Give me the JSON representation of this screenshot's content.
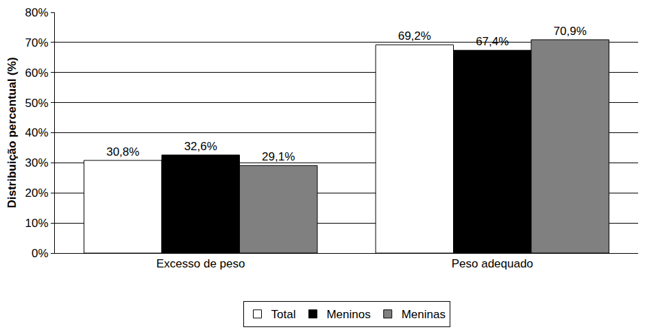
{
  "chart_data": {
    "type": "bar",
    "y_label": "Distribuição percentual (%)",
    "categories": [
      "Excesso de peso",
      "Peso adequado"
    ],
    "series": [
      {
        "name": "Total",
        "color": "#ffffff",
        "values": [
          30.8,
          69.2
        ],
        "value_labels": [
          "30,8%",
          "69,2%"
        ]
      },
      {
        "name": "Meninos",
        "color": "#000000",
        "values": [
          32.6,
          67.4
        ],
        "value_labels": [
          "32,6%",
          "67,4%"
        ]
      },
      {
        "name": "Meninas",
        "color": "#808080",
        "values": [
          29.1,
          70.9
        ],
        "value_labels": [
          "29,1%",
          "70,9%"
        ]
      }
    ],
    "ylim": [
      0,
      80
    ],
    "yticks": [
      {
        "value": 0,
        "label": "0%"
      },
      {
        "value": 10,
        "label": "10%"
      },
      {
        "value": 20,
        "label": "20%"
      },
      {
        "value": 30,
        "label": "30%"
      },
      {
        "value": 40,
        "label": "40%"
      },
      {
        "value": 50,
        "label": "50%"
      },
      {
        "value": 60,
        "label": "60%"
      },
      {
        "value": 70,
        "label": "70%"
      },
      {
        "value": 80,
        "label": "80%"
      }
    ],
    "grid": true,
    "legend": "bottom",
    "data_labels": true
  }
}
